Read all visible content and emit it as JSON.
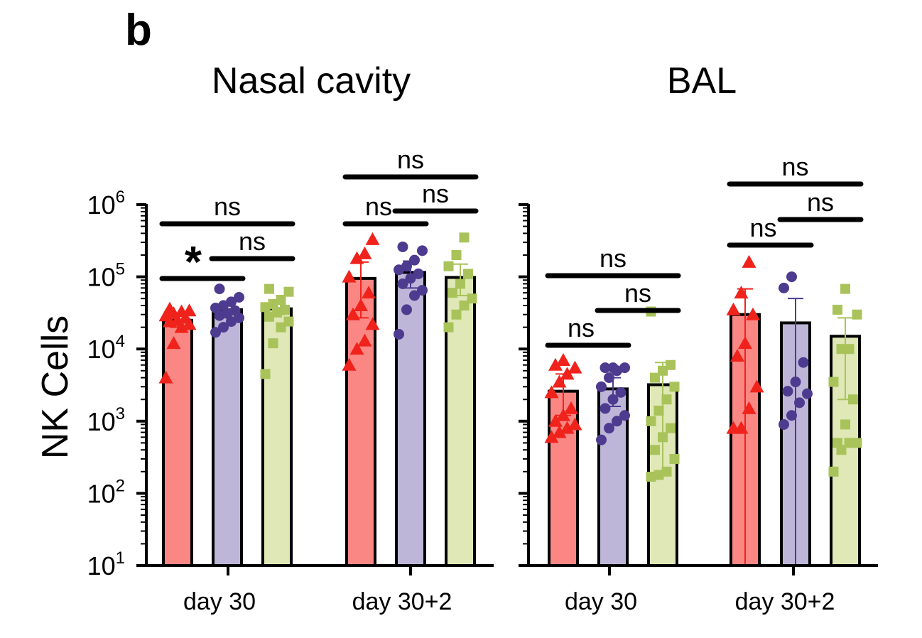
{
  "figure": {
    "panel_letter": "b",
    "ylabel": "NK Cells"
  },
  "y_ticks": [
    {
      "base": "10",
      "exp": "1"
    },
    {
      "base": "10",
      "exp": "2"
    },
    {
      "base": "10",
      "exp": "3"
    },
    {
      "base": "10",
      "exp": "4"
    },
    {
      "base": "10",
      "exp": "5"
    },
    {
      "base": "10",
      "exp": "6"
    }
  ],
  "colors": {
    "red_fill": "#fb8784",
    "red_marker": "#f0231c",
    "purple_fill": "#bdb6d8",
    "purple_marker": "#4d3b8f",
    "green_fill": "#dfe8b6",
    "green_marker": "#a9c35a",
    "axis": "#000000"
  },
  "chart_data": [
    {
      "type": "bar",
      "title": "Nasal cavity",
      "yscale": "log",
      "ylim": [
        10,
        1000000
      ],
      "ylabel": "NK Cells",
      "categories": [
        "day 30",
        "day 30+2"
      ],
      "groups": [
        {
          "category": "day 30",
          "bars": [
            {
              "color": "red",
              "marker": "triangle",
              "mean": 25000,
              "err_low": 20000,
              "err_high": 30000,
              "points": [
                4000,
                12000,
                20000,
                22000,
                24000,
                25000,
                27000,
                29000,
                31000,
                33000,
                34000,
                36000
              ]
            },
            {
              "color": "purple",
              "marker": "circle",
              "mean": 35000,
              "err_low": 30000,
              "err_high": 40000,
              "points": [
                17000,
                20000,
                24000,
                27000,
                29000,
                31000,
                34000,
                37000,
                40000,
                45000,
                52000,
                68000
              ]
            },
            {
              "color": "green",
              "marker": "square",
              "mean": 36000,
              "err_low": 30000,
              "err_high": 42000,
              "points": [
                4500,
                12000,
                20000,
                24000,
                28000,
                32000,
                35000,
                38000,
                42000,
                48000,
                62000,
                68000
              ]
            }
          ],
          "significance": [
            {
              "from": 0,
              "to": 1,
              "label": "*"
            },
            {
              "from": 1,
              "to": 2,
              "label": "ns"
            },
            {
              "from": 0,
              "to": 2,
              "label": "ns"
            }
          ]
        },
        {
          "category": "day 30+2",
          "bars": [
            {
              "color": "red",
              "marker": "triangle",
              "mean": 95000,
              "err_low": 27000,
              "err_high": 160000,
              "points": [
                6000,
                10000,
                13000,
                22000,
                30000,
                40000,
                60000,
                100000,
                180000,
                210000,
                330000
              ]
            },
            {
              "color": "purple",
              "marker": "circle",
              "mean": 115000,
              "err_low": 70000,
              "err_high": 165000,
              "points": [
                16000,
                35000,
                55000,
                65000,
                80000,
                95000,
                110000,
                125000,
                140000,
                170000,
                230000,
                260000
              ]
            },
            {
              "color": "green",
              "marker": "square",
              "mean": 98000,
              "err_low": 55000,
              "err_high": 150000,
              "points": [
                20000,
                30000,
                40000,
                50000,
                60000,
                80000,
                110000,
                140000,
                200000,
                350000
              ]
            }
          ],
          "significance": [
            {
              "from": 0,
              "to": 1,
              "label": "ns"
            },
            {
              "from": 1,
              "to": 2,
              "label": "ns"
            },
            {
              "from": 0,
              "to": 2,
              "label": "ns"
            }
          ]
        }
      ]
    },
    {
      "type": "bar",
      "title": "BAL",
      "yscale": "log",
      "ylim": [
        10,
        1000000
      ],
      "categories": [
        "day 30",
        "day 30+2"
      ],
      "groups": [
        {
          "category": "day 30",
          "bars": [
            {
              "color": "red",
              "marker": "triangle",
              "mean": 2600,
              "err_low": 1200,
              "err_high": 4500,
              "points": [
                600,
                700,
                800,
                900,
                1000,
                1200,
                1500,
                2500,
                3500,
                4500,
                5500,
                6000,
                7000
              ]
            },
            {
              "color": "purple",
              "marker": "circle",
              "mean": 2800,
              "err_low": 1600,
              "err_high": 4000,
              "points": [
                550,
                800,
                1000,
                1200,
                1500,
                2000,
                2500,
                3000,
                4000,
                5000,
                5500,
                5500,
                5500
              ]
            },
            {
              "color": "green",
              "marker": "square",
              "mean": 3200,
              "err_low": 200,
              "err_high": 6500,
              "points": [
                170,
                180,
                200,
                300,
                400,
                600,
                800,
                1000,
                1400,
                2000,
                3000,
                4000,
                5000,
                6000,
                33000
              ]
            }
          ],
          "significance": [
            {
              "from": 0,
              "to": 1,
              "label": "ns"
            },
            {
              "from": 1,
              "to": 2,
              "label": "ns"
            },
            {
              "from": 0,
              "to": 2,
              "label": "ns"
            }
          ]
        },
        {
          "category": "day 30+2",
          "bars": [
            {
              "color": "red",
              "marker": "triangle",
              "mean": 30000,
              "err_low": 10,
              "err_high": 68000,
              "points": [
                800,
                800,
                1500,
                3000,
                8000,
                12000,
                30000,
                35000,
                60000,
                160000
              ]
            },
            {
              "color": "purple",
              "marker": "circle",
              "mean": 23000,
              "err_low": 10,
              "err_high": 50000,
              "points": [
                900,
                1200,
                1800,
                2400,
                2600,
                3500,
                6500,
                70000,
                100000
              ]
            },
            {
              "color": "green",
              "marker": "square",
              "mean": 15000,
              "err_low": 2000,
              "err_high": 27000,
              "points": [
                200,
                400,
                500,
                500,
                500,
                900,
                2000,
                3500,
                10000,
                10000,
                30000,
                35000,
                68000
              ]
            }
          ],
          "significance": [
            {
              "from": 0,
              "to": 1,
              "label": "ns"
            },
            {
              "from": 1,
              "to": 2,
              "label": "ns"
            },
            {
              "from": 0,
              "to": 2,
              "label": "ns"
            }
          ]
        }
      ]
    }
  ]
}
